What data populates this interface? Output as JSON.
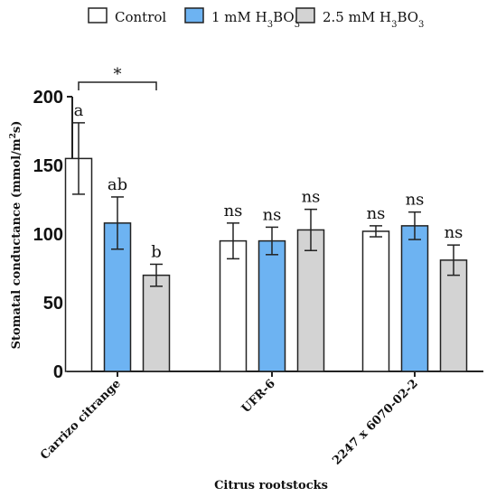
{
  "chart_data": {
    "type": "bar",
    "xlabel": "Citrus rootstocks",
    "ylabel": "Stomatal conductance (mmol/m²s)",
    "ylim": [
      0,
      200
    ],
    "yticks": [
      0,
      50,
      100,
      150,
      200
    ],
    "categories": [
      "Carrizo citrange",
      "UFR-6",
      "2247 x 6070-02-2"
    ],
    "series": [
      {
        "name": "Control",
        "color": "#ffffff",
        "values": [
          155,
          95,
          102
        ],
        "errors": [
          26,
          13,
          4
        ],
        "labels": [
          "a",
          "ns",
          "ns"
        ]
      },
      {
        "name": "1 mM H3BO3",
        "color": "#6db3f2",
        "values": [
          108,
          95,
          106
        ],
        "errors": [
          19,
          10,
          10
        ],
        "labels": [
          "ab",
          "ns",
          "ns"
        ]
      },
      {
        "name": "2.5 mM H3BO3",
        "color": "#d3d3d3",
        "values": [
          70,
          103,
          81
        ],
        "errors": [
          8,
          15,
          11
        ],
        "labels": [
          "b",
          "ns",
          "ns"
        ]
      }
    ],
    "legend": {
      "position": "top",
      "entries": [
        {
          "text": "Control",
          "sub": "",
          "tail": ""
        },
        {
          "text": "1 mM H",
          "sub": "3",
          "tail": "BO",
          "sub2": "3"
        },
        {
          "text": "2.5 mM H",
          "sub": "3",
          "tail": "BO",
          "sub2": "3"
        }
      ]
    },
    "significance": {
      "label": "*",
      "category": "Carrizo citrange",
      "from_series": 0,
      "to_series": 2
    }
  }
}
